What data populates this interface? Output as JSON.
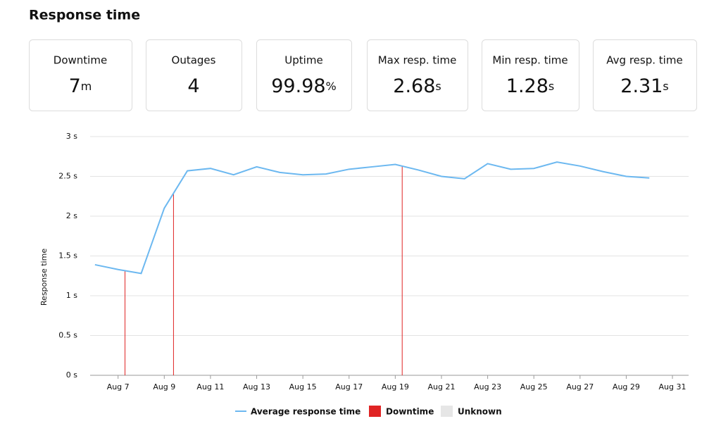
{
  "header": {
    "title": "Response time"
  },
  "stats": [
    {
      "label": "Downtime",
      "value": 7,
      "unit": "m"
    },
    {
      "label": "Outages",
      "value": 4
    },
    {
      "label": "Uptime",
      "value": 99.98,
      "unit": "%"
    },
    {
      "label": "Max resp. time",
      "value": 2.68,
      "unit": "s"
    },
    {
      "label": "Min resp. time",
      "value": 1.28,
      "unit": "s"
    },
    {
      "label": "Avg resp. time",
      "value": 2.31,
      "unit": "s"
    }
  ],
  "chart_data": {
    "type": "line",
    "y_label": "Response time",
    "xlim": [
      5.79,
      31.7
    ],
    "xticks": [
      {
        "value": 7,
        "label": "Aug 7"
      },
      {
        "value": 9,
        "label": "Aug 9"
      },
      {
        "value": 11,
        "label": "Aug 11"
      },
      {
        "value": 13,
        "label": "Aug 13"
      },
      {
        "value": 15,
        "label": "Aug 15"
      },
      {
        "value": 17,
        "label": "Aug 17"
      },
      {
        "value": 19,
        "label": "Aug 19"
      },
      {
        "value": 21,
        "label": "Aug 21"
      },
      {
        "value": 23,
        "label": "Aug 23"
      },
      {
        "value": 25,
        "label": "Aug 25"
      },
      {
        "value": 27,
        "label": "Aug 27"
      },
      {
        "value": 29,
        "label": "Aug 29"
      },
      {
        "value": 31,
        "label": "Aug 31"
      }
    ],
    "ylim": [
      0,
      3
    ],
    "yticks": [
      {
        "value": 0,
        "label": "0 s"
      },
      {
        "value": 0.5,
        "label": "0.5 s"
      },
      {
        "value": 1,
        "label": "1 s"
      },
      {
        "value": 1.5,
        "label": "1.5 s"
      },
      {
        "value": 2,
        "label": "2 s"
      },
      {
        "value": 2.5,
        "label": "2.5 s"
      },
      {
        "value": 3,
        "label": "3 s"
      }
    ],
    "grid": true,
    "series": [
      {
        "name": "Average response time",
        "color": "#6cb8f0",
        "x": [
          6,
          7,
          8,
          9,
          10,
          11,
          12,
          13,
          14,
          15,
          16,
          17,
          18,
          19,
          20,
          21,
          22,
          23,
          24,
          25,
          26,
          27,
          28,
          29,
          30
        ],
        "values": [
          1.39,
          1.33,
          1.28,
          2.1,
          2.57,
          2.6,
          2.52,
          2.62,
          2.55,
          2.52,
          2.53,
          2.59,
          2.62,
          2.65,
          2.58,
          2.5,
          2.47,
          2.66,
          2.59,
          2.6,
          2.68,
          2.63,
          2.56,
          2.5,
          2.48
        ]
      },
      {
        "name": "Downtime",
        "color": "#e02424",
        "x": [
          7.3,
          9.4,
          19.3
        ]
      },
      {
        "name": "Unknown",
        "color": "#e6e6e6",
        "x": []
      }
    ]
  }
}
